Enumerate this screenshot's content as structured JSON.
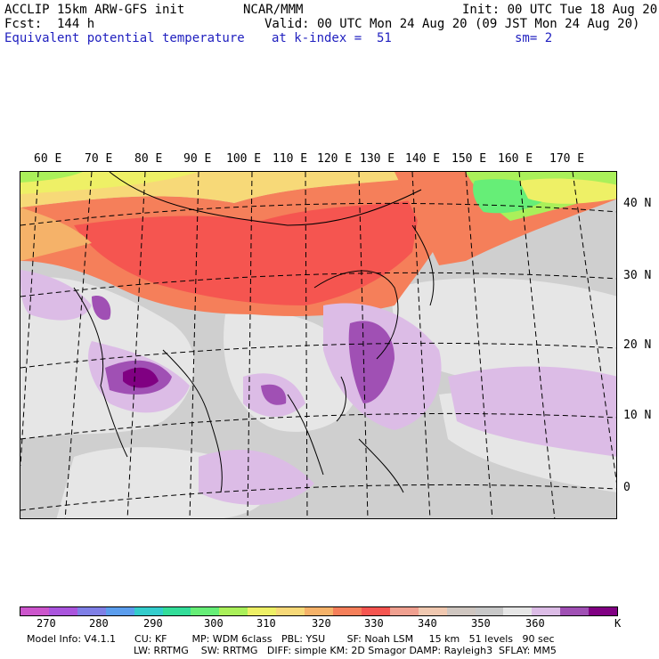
{
  "header": {
    "model_title": "ACCLIP 15km ARW-GFS init",
    "forecast": "Fcst:  144 h",
    "variable": "Equivalent potential temperature",
    "center": "NCAR/MMM",
    "init": "Init: 00 UTC Tue 18 Aug 20",
    "valid": "Valid: 00 UTC Mon 24 Aug 20 (09 JST Mon 24 Aug 20)",
    "level": "at k-index =  51",
    "smoothing": "sm= 2",
    "accent_color": "#1f1fbf"
  },
  "map": {
    "lon_labels": [
      "60 E",
      "70 E",
      "80 E",
      "90 E",
      "100 E",
      "110 E",
      "120 E",
      "130 E",
      "140 E",
      "150 E",
      "160 E",
      "170 E"
    ],
    "lat_labels": [
      "40 N",
      "30 N",
      "20 N",
      "10 N",
      "0"
    ],
    "projection": "lambert-conformal",
    "field": "equivalent potential temperature"
  },
  "colorbar": {
    "colors": [
      "#cc55cc",
      "#aa55dd",
      "#7f7fe6",
      "#5b9ded",
      "#33cccc",
      "#33dd99",
      "#66ee77",
      "#aaf05a",
      "#eef066",
      "#f7d978",
      "#f5b269",
      "#f57f5a",
      "#f55550",
      "#f0a090",
      "#f0c8b0",
      "#cfc6c0",
      "#c8c8c8",
      "#e6e6e6",
      "#dcbce6",
      "#a050b4",
      "#800082"
    ],
    "tick_labels": [
      "270",
      "280",
      "290",
      "300",
      "310",
      "320",
      "330",
      "340",
      "350",
      "360"
    ],
    "unit": "K"
  },
  "model_info": {
    "line1": "Model Info: V4.1.1      CU: KF        MP: WDM 6class   PBL: YSU       SF: Noah LSM     15 km   51 levels   90 sec",
    "line2": "LW: RRTMG    SW: RRTMG   DIFF: simple KM: 2D Smagor DAMP: Rayleigh3  SFLAY: MM5"
  }
}
